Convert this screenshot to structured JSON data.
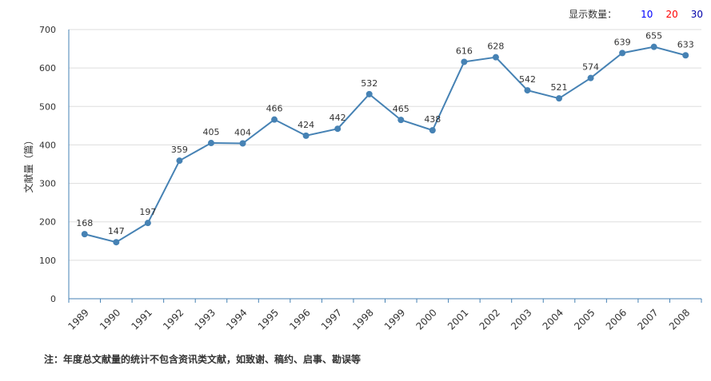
{
  "controls": {
    "display_count_label": "显示数量：",
    "options": [
      {
        "label": "10",
        "color": "#0000ff"
      },
      {
        "label": "20",
        "color": "#ff0000"
      },
      {
        "label": "30",
        "color": "#0000aa"
      }
    ]
  },
  "note": "注：年度总文献量的统计不包含资讯类文献，如致谢、稿约、启事、勘误等",
  "chart_data": {
    "type": "line",
    "ylabel": "文献量（篇）",
    "ylim": [
      0,
      700
    ],
    "yticks": [
      0,
      100,
      200,
      300,
      400,
      500,
      600,
      700
    ],
    "grid": true,
    "categories": [
      "1989",
      "1990",
      "1991",
      "1992",
      "1993",
      "1994",
      "1995",
      "1996",
      "1997",
      "1998",
      "1999",
      "2000",
      "2001",
      "2002",
      "2003",
      "2004",
      "2005",
      "2006",
      "2007",
      "2008"
    ],
    "series": [
      {
        "values": [
          168,
          147,
          197,
          359,
          405,
          404,
          466,
          424,
          442,
          532,
          465,
          438,
          616,
          628,
          542,
          521,
          574,
          639,
          655,
          633
        ]
      }
    ],
    "colors": {
      "line": "#4682b4",
      "axis": "#4682b4",
      "grid": "#dddddd",
      "text": "#333333"
    }
  }
}
